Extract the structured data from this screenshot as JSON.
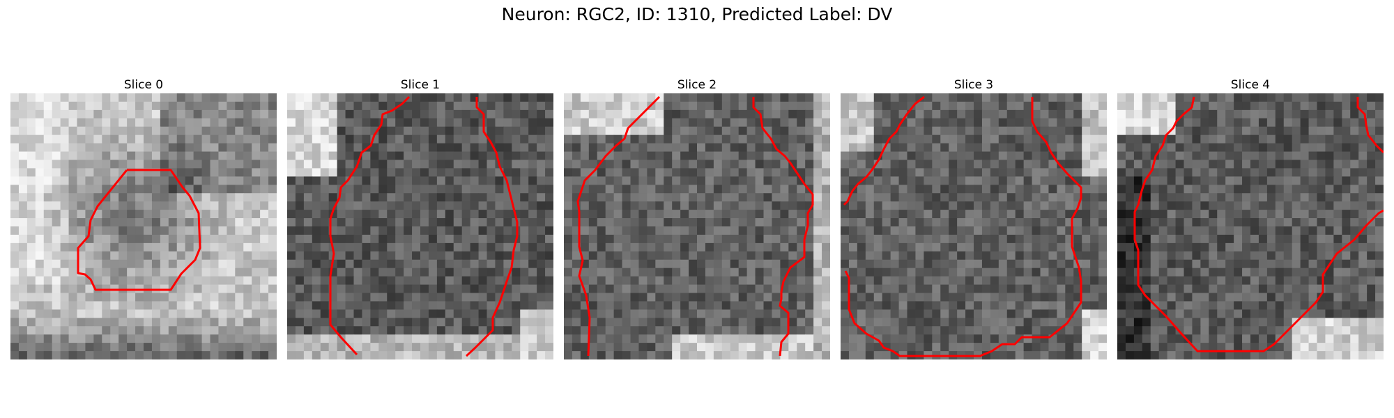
{
  "figure": {
    "title": "Neuron: RGC2, ID: 1310, Predicted Label: DV"
  },
  "panels": [
    {
      "title": "Slice 0"
    },
    {
      "title": "Slice 1"
    },
    {
      "title": "Slice 2"
    },
    {
      "title": "Slice 3"
    },
    {
      "title": "Slice 4"
    }
  ],
  "colors": {
    "contour": "#ff0000",
    "background": "#ffffff",
    "text": "#000000"
  }
}
